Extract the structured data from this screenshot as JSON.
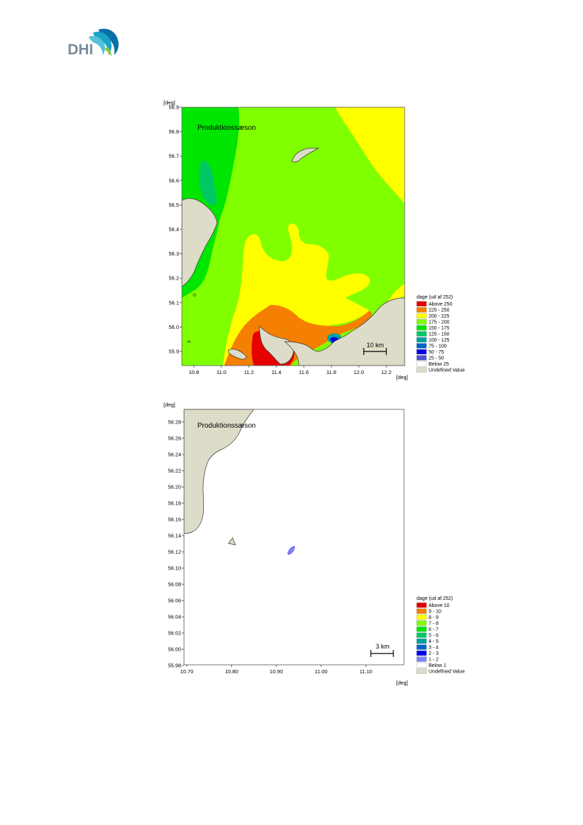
{
  "brand": {
    "name": "DHI",
    "colors": [
      "#0a6ea8",
      "#1aa3c8",
      "#55c3d6",
      "#8dc63f"
    ]
  },
  "map1": {
    "title": "Produktionssæson",
    "x_unit": "[deg]",
    "y_unit": "[deg]",
    "x_ticks": [
      "10.8",
      "11.0",
      "11.2",
      "11.4",
      "11.6",
      "11.8",
      "12.0",
      "12.2"
    ],
    "y_ticks": [
      "56.9",
      "56.8",
      "56.7",
      "56.6",
      "56.5",
      "56.4",
      "56.3",
      "56.2",
      "56.1",
      "56.0",
      "55.9"
    ],
    "scale_label": "10 km",
    "legend": {
      "title": "dage (ud af 252)",
      "items": [
        {
          "label": "Above 250",
          "color": "#e60000"
        },
        {
          "label": "225 - 250",
          "color": "#f57f00"
        },
        {
          "label": "200 - 225",
          "color": "#ffff00"
        },
        {
          "label": "175 - 200",
          "color": "#80ff00"
        },
        {
          "label": "150 - 175",
          "color": "#00e600"
        },
        {
          "label": "125 - 150",
          "color": "#00c864"
        },
        {
          "label": "100 - 125",
          "color": "#00a0a0"
        },
        {
          "label": "75 - 100",
          "color": "#0064c8"
        },
        {
          "label": "50 - 75",
          "color": "#0000e6"
        },
        {
          "label": "25 - 50",
          "color": "#5050d0"
        },
        {
          "label": "Below 25",
          "color": "#ffffff"
        },
        {
          "label": "Undefined Value",
          "color": "#dcdcc8"
        }
      ]
    }
  },
  "map2": {
    "title": "Produktionssæson",
    "x_unit": "[deg]",
    "y_unit": "[deg]",
    "x_ticks": [
      "10.70",
      "10.80",
      "10.90",
      "11.00",
      "11.10"
    ],
    "y_ticks": [
      "56.28",
      "56.26",
      "56.24",
      "56.22",
      "56.20",
      "56.18",
      "56.16",
      "56.14",
      "56.12",
      "56.10",
      "56.08",
      "56.06",
      "56.04",
      "56.02",
      "56.00",
      "55.98"
    ],
    "scale_label": "3 km",
    "legend": {
      "title": "dage (ud af 252)",
      "items": [
        {
          "label": "Above 10",
          "color": "#e60000"
        },
        {
          "label": "9 - 10",
          "color": "#f57f00"
        },
        {
          "label": "8 - 9",
          "color": "#ffff00"
        },
        {
          "label": "7 - 8",
          "color": "#80ff00"
        },
        {
          "label": "6 - 7",
          "color": "#00e600"
        },
        {
          "label": "5 - 6",
          "color": "#00c864"
        },
        {
          "label": "4 - 5",
          "color": "#00a0a0"
        },
        {
          "label": "3 - 4",
          "color": "#0064c8"
        },
        {
          "label": "2 - 3",
          "color": "#0000e6"
        },
        {
          "label": "1 - 2",
          "color": "#8080ff"
        },
        {
          "label": "Below 1",
          "color": "#ffffff"
        },
        {
          "label": "Undefined Value",
          "color": "#dcdcc8"
        }
      ]
    }
  }
}
